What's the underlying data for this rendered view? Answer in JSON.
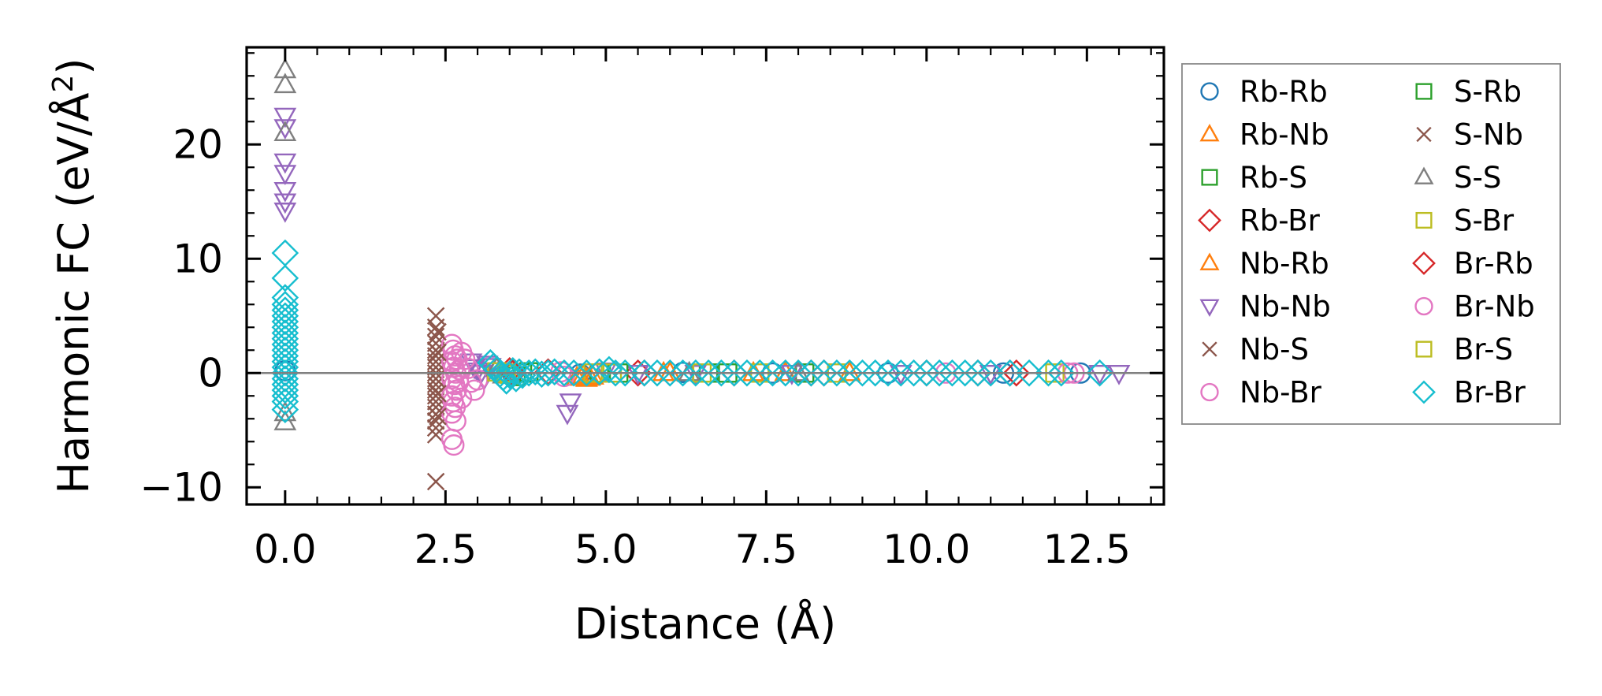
{
  "chart_data": {
    "type": "scatter",
    "title": "",
    "xlabel": "Distance (Å)",
    "ylabel_main": "Harmonic FC (eV/Å",
    "ylabel_sup": "2",
    "ylabel_close": ")",
    "xlim": [
      -0.6,
      13.7
    ],
    "ylim": [
      -11.5,
      28.5
    ],
    "xticks": [
      0.0,
      2.5,
      5.0,
      7.5,
      10.0,
      12.5
    ],
    "xtick_labels": [
      "0.0",
      "2.5",
      "5.0",
      "7.5",
      "10.0",
      "12.5"
    ],
    "yticks": [
      -10,
      0,
      10,
      20
    ],
    "ytick_labels": [
      "−10",
      "0",
      "10",
      "20"
    ],
    "reference_line_y": 0,
    "grid": false,
    "legend_position": "outside-right",
    "legend_columns": 2,
    "series": [
      {
        "name": "Rb-Rb",
        "marker": "circle",
        "color": "#1f77b4",
        "points": [
          [
            0.0,
            0.2
          ],
          [
            4.6,
            -0.1
          ],
          [
            6.2,
            0.05
          ],
          [
            7.6,
            0.0
          ],
          [
            9.4,
            0.0
          ],
          [
            11.2,
            0.0
          ],
          [
            12.4,
            0.0
          ]
        ]
      },
      {
        "name": "Rb-Nb",
        "marker": "triangle-up",
        "color": "#ff7f0e",
        "points": [
          [
            4.55,
            -0.4
          ],
          [
            4.65,
            -0.2
          ],
          [
            4.7,
            -0.5
          ],
          [
            4.8,
            -0.3
          ],
          [
            5.9,
            0.0
          ],
          [
            7.3,
            0.0
          ],
          [
            8.8,
            0.0
          ]
        ]
      },
      {
        "name": "Rb-S",
        "marker": "square",
        "color": "#2ca02c",
        "points": [
          [
            3.6,
            -0.3
          ],
          [
            3.8,
            0.1
          ],
          [
            4.9,
            0.0
          ],
          [
            6.6,
            0.0
          ],
          [
            8.1,
            0.0
          ]
        ]
      },
      {
        "name": "Rb-Br",
        "marker": "diamond",
        "color": "#d62728",
        "points": [
          [
            3.5,
            0.2
          ],
          [
            4.1,
            0.1
          ],
          [
            5.5,
            0.0
          ],
          [
            7.0,
            0.0
          ],
          [
            8.4,
            0.0
          ],
          [
            10.0,
            0.0
          ],
          [
            11.3,
            0.0
          ]
        ]
      },
      {
        "name": "Nb-Rb",
        "marker": "triangle-up",
        "color": "#ff7f0e",
        "points": [
          [
            4.6,
            -0.3
          ],
          [
            4.75,
            -0.4
          ],
          [
            6.0,
            0.0
          ],
          [
            7.8,
            0.0
          ]
        ]
      },
      {
        "name": "Nb-Nb",
        "marker": "triangle-down",
        "color": "#9467bd",
        "points": [
          [
            0.0,
            22.5
          ],
          [
            0.0,
            21.5
          ],
          [
            0.0,
            18.5
          ],
          [
            0.0,
            17.5
          ],
          [
            0.0,
            16.0
          ],
          [
            0.0,
            15.0
          ],
          [
            0.0,
            14.2
          ],
          [
            2.9,
            1.0
          ],
          [
            2.95,
            0.5
          ],
          [
            3.0,
            0.2
          ],
          [
            3.05,
            0.0
          ],
          [
            3.1,
            -0.5
          ],
          [
            3.15,
            0.8
          ],
          [
            3.2,
            0.6
          ],
          [
            4.4,
            -3.5
          ],
          [
            4.45,
            -2.5
          ],
          [
            5.0,
            0.2
          ],
          [
            5.5,
            0.0
          ],
          [
            6.4,
            0.0
          ],
          [
            7.9,
            0.0
          ],
          [
            9.6,
            0.0
          ],
          [
            11.0,
            0.0
          ],
          [
            12.7,
            0.0
          ],
          [
            13.0,
            0.0
          ]
        ]
      },
      {
        "name": "Nb-S",
        "marker": "cross",
        "color": "#8c564b",
        "points": [
          [
            2.35,
            5.0
          ],
          [
            2.35,
            4.0
          ],
          [
            2.35,
            3.2
          ],
          [
            2.35,
            2.6
          ],
          [
            2.35,
            2.0
          ],
          [
            2.35,
            1.5
          ],
          [
            2.35,
            1.0
          ],
          [
            2.35,
            0.5
          ],
          [
            2.35,
            0.0
          ],
          [
            2.35,
            -0.5
          ],
          [
            2.35,
            -1.0
          ],
          [
            2.35,
            -1.5
          ],
          [
            2.35,
            -2.0
          ],
          [
            2.35,
            -2.5
          ],
          [
            2.35,
            -3.0
          ],
          [
            2.35,
            -3.6
          ],
          [
            2.35,
            -4.2
          ],
          [
            2.35,
            -4.8
          ],
          [
            2.35,
            -5.4
          ],
          [
            2.35,
            -9.5
          ]
        ]
      },
      {
        "name": "Nb-Br",
        "marker": "circle",
        "color": "#e377c2",
        "points": [
          [
            2.6,
            2.5
          ],
          [
            2.62,
            2.0
          ],
          [
            2.65,
            1.5
          ],
          [
            2.6,
            1.0
          ],
          [
            2.63,
            0.5
          ],
          [
            2.66,
            0.0
          ],
          [
            2.6,
            -0.5
          ],
          [
            2.64,
            -1.0
          ],
          [
            2.67,
            -1.5
          ],
          [
            2.6,
            -2.0
          ],
          [
            2.62,
            -2.5
          ],
          [
            2.65,
            -3.0
          ],
          [
            2.6,
            -3.5
          ],
          [
            2.66,
            -4.2
          ],
          [
            2.6,
            -5.8
          ],
          [
            2.63,
            -6.3
          ],
          [
            2.75,
            1.8
          ],
          [
            2.8,
            1.2
          ],
          [
            2.85,
            0.4
          ],
          [
            2.9,
            -0.8
          ],
          [
            2.95,
            -1.5
          ],
          [
            3.0,
            -0.6
          ],
          [
            4.3,
            0.1
          ],
          [
            4.35,
            -0.3
          ],
          [
            10.3,
            0.0
          ],
          [
            12.3,
            0.0
          ]
        ]
      },
      {
        "name": "S-Rb",
        "marker": "square",
        "color": "#2ca02c",
        "points": [
          [
            3.7,
            0.0
          ],
          [
            5.2,
            0.0
          ],
          [
            6.9,
            0.0
          ]
        ]
      },
      {
        "name": "S-Nb",
        "marker": "cross",
        "color": "#8c564b",
        "points": [
          [
            2.38,
            3.6
          ],
          [
            2.38,
            1.8
          ],
          [
            2.38,
            -1.8
          ],
          [
            2.38,
            -3.8
          ]
        ]
      },
      {
        "name": "S-S",
        "marker": "triangle-up",
        "color": "#7f7f7f",
        "points": [
          [
            0.0,
            26.5
          ],
          [
            0.0,
            25.2
          ],
          [
            0.0,
            21.0
          ],
          [
            0.0,
            -3.5
          ],
          [
            0.0,
            -4.3
          ],
          [
            3.3,
            0.4
          ],
          [
            3.4,
            -0.2
          ],
          [
            6.3,
            0.0
          ],
          [
            8.0,
            0.0
          ]
        ]
      },
      {
        "name": "S-Br",
        "marker": "square",
        "color": "#bcbd22",
        "points": [
          [
            3.3,
            0.1
          ],
          [
            3.5,
            -0.1
          ],
          [
            4.8,
            0.0
          ],
          [
            6.5,
            0.0
          ],
          [
            8.6,
            0.0
          ],
          [
            12.0,
            0.0
          ]
        ]
      },
      {
        "name": "Br-Rb",
        "marker": "diamond",
        "color": "#d62728",
        "points": [
          [
            3.55,
            0.0
          ],
          [
            5.6,
            0.0
          ],
          [
            8.2,
            0.0
          ],
          [
            10.8,
            0.0
          ],
          [
            11.4,
            0.0
          ]
        ]
      },
      {
        "name": "Br-Nb",
        "marker": "circle",
        "color": "#e377c2",
        "points": [
          [
            2.68,
            1.2
          ],
          [
            2.7,
            -0.8
          ],
          [
            2.72,
            0.3
          ],
          [
            2.75,
            -2.2
          ],
          [
            12.2,
            0.0
          ]
        ]
      },
      {
        "name": "Br-S",
        "marker": "square",
        "color": "#bcbd22",
        "points": [
          [
            3.45,
            0.0
          ],
          [
            5.1,
            0.0
          ],
          [
            7.4,
            0.0
          ]
        ]
      },
      {
        "name": "Br-Br",
        "marker": "diamond",
        "color": "#17becf",
        "points": [
          [
            0.0,
            10.5
          ],
          [
            0.0,
            8.3
          ],
          [
            0.0,
            6.6
          ],
          [
            0.0,
            6.0
          ],
          [
            0.0,
            5.5
          ],
          [
            0.0,
            5.0
          ],
          [
            0.0,
            4.5
          ],
          [
            0.0,
            4.0
          ],
          [
            0.0,
            3.5
          ],
          [
            0.0,
            3.0
          ],
          [
            0.0,
            2.5
          ],
          [
            0.0,
            2.0
          ],
          [
            0.0,
            1.5
          ],
          [
            0.0,
            1.0
          ],
          [
            0.0,
            0.5
          ],
          [
            0.0,
            0.0
          ],
          [
            0.0,
            -0.5
          ],
          [
            0.0,
            -1.0
          ],
          [
            0.0,
            -1.5
          ],
          [
            0.0,
            -2.0
          ],
          [
            0.0,
            -2.5
          ],
          [
            0.0,
            -3.2
          ],
          [
            3.2,
            0.9
          ],
          [
            3.25,
            0.6
          ],
          [
            3.3,
            0.3
          ],
          [
            3.35,
            -0.1
          ],
          [
            3.4,
            -0.4
          ],
          [
            3.45,
            -0.7
          ],
          [
            3.5,
            -0.2
          ],
          [
            3.55,
            0.2
          ],
          [
            3.6,
            -0.5
          ],
          [
            3.65,
            0.1
          ],
          [
            3.7,
            -0.2
          ],
          [
            3.8,
            0.0
          ],
          [
            3.9,
            0.1
          ],
          [
            4.0,
            -0.1
          ],
          [
            4.1,
            0.0
          ],
          [
            4.2,
            0.1
          ],
          [
            4.35,
            0.0
          ],
          [
            4.5,
            0.0
          ],
          [
            4.7,
            0.0
          ],
          [
            4.9,
            0.1
          ],
          [
            5.05,
            0.3
          ],
          [
            5.15,
            0.0
          ],
          [
            5.3,
            0.0
          ],
          [
            5.6,
            0.0
          ],
          [
            5.8,
            0.0
          ],
          [
            6.0,
            0.0
          ],
          [
            6.2,
            0.0
          ],
          [
            6.4,
            0.0
          ],
          [
            6.6,
            0.0
          ],
          [
            6.8,
            0.0
          ],
          [
            7.0,
            0.0
          ],
          [
            7.2,
            0.0
          ],
          [
            7.4,
            0.0
          ],
          [
            7.6,
            0.0
          ],
          [
            7.8,
            0.0
          ],
          [
            8.0,
            0.0
          ],
          [
            8.2,
            0.0
          ],
          [
            8.4,
            0.0
          ],
          [
            8.6,
            0.0
          ],
          [
            8.8,
            0.0
          ],
          [
            9.0,
            0.0
          ],
          [
            9.2,
            0.0
          ],
          [
            9.4,
            0.0
          ],
          [
            9.6,
            0.0
          ],
          [
            9.8,
            0.0
          ],
          [
            10.0,
            0.0
          ],
          [
            10.2,
            0.0
          ],
          [
            10.4,
            0.0
          ],
          [
            10.6,
            0.0
          ],
          [
            10.8,
            0.0
          ],
          [
            11.0,
            0.0
          ],
          [
            11.3,
            0.0
          ],
          [
            11.6,
            0.0
          ],
          [
            11.9,
            0.0
          ],
          [
            12.1,
            0.0
          ],
          [
            12.7,
            0.0
          ]
        ]
      }
    ]
  }
}
